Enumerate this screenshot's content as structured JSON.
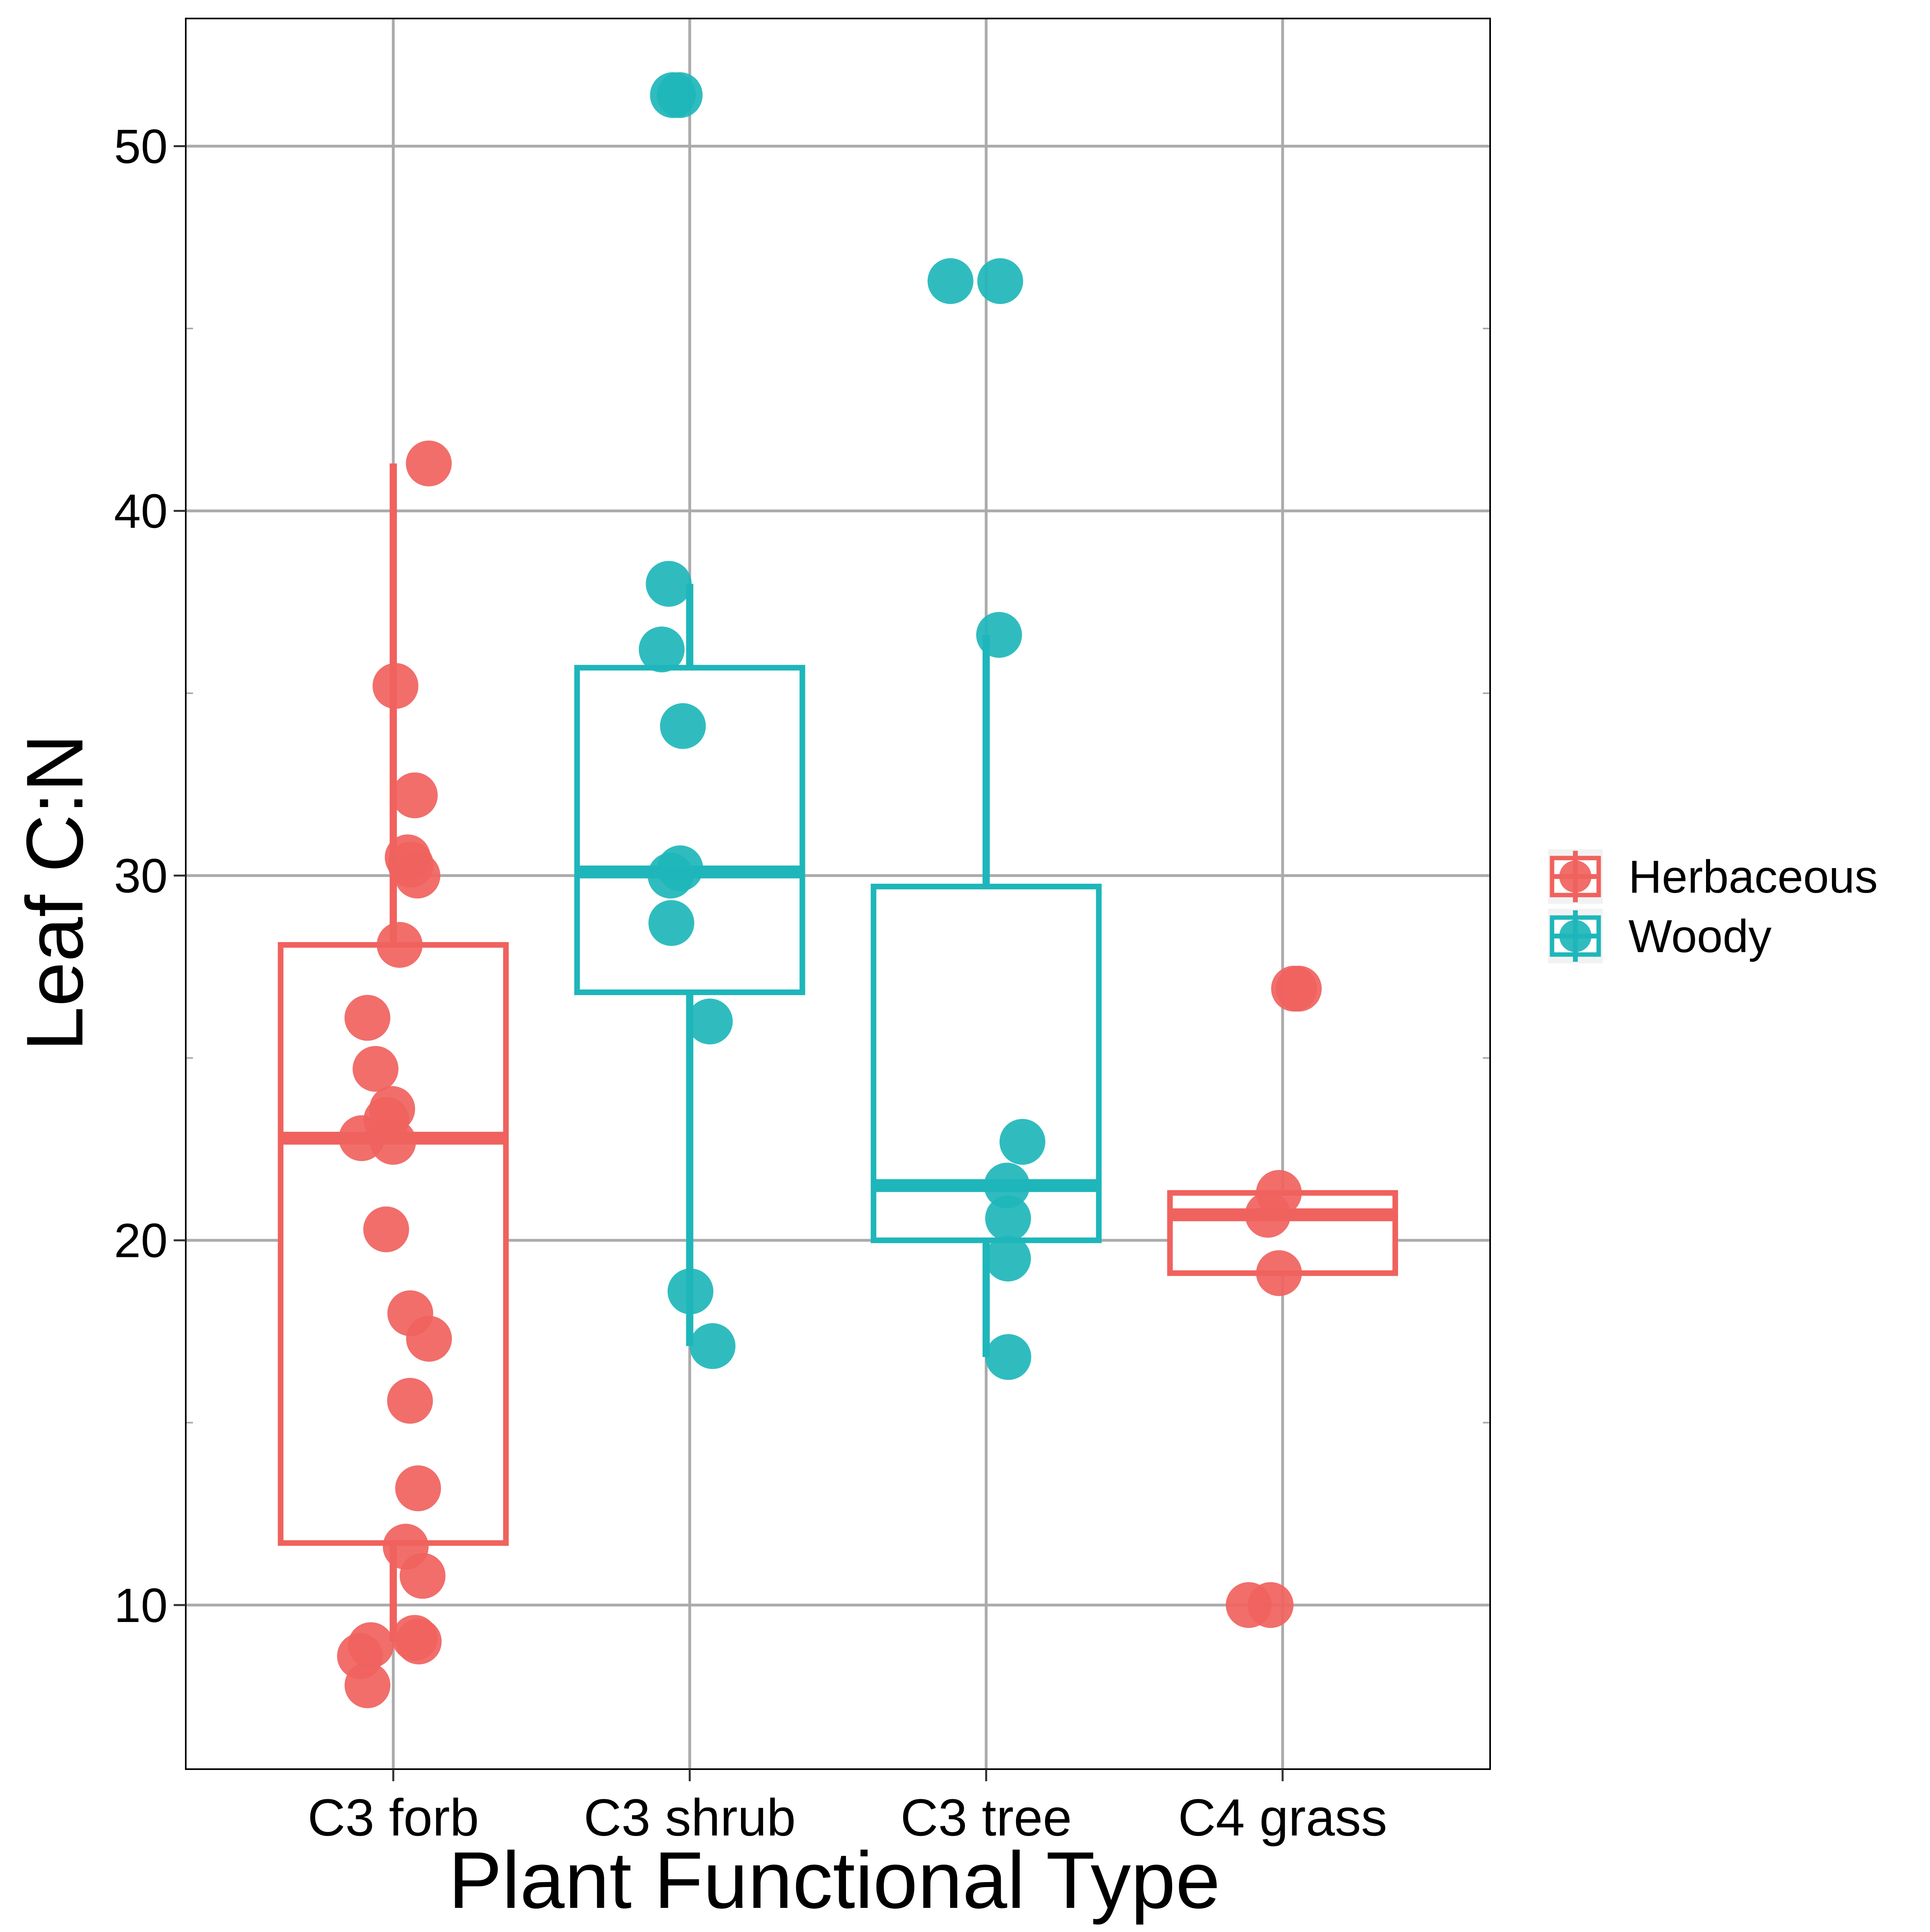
{
  "chart_data": {
    "type": "box",
    "title": "",
    "xlabel": "Plant Functional Type",
    "ylabel": "Leaf C:N",
    "ylim": [
      5.5,
      53.5
    ],
    "yticks": [
      10,
      20,
      30,
      40,
      50
    ],
    "y_minor_gridlines": [
      15,
      25,
      35,
      45
    ],
    "grid": true,
    "legend_position": "right",
    "categories": [
      "C3 forb",
      "C3 shrub",
      "C3 tree",
      "C4 grass"
    ],
    "series": [
      {
        "name": "Herbaceous",
        "color": "#F0625E"
      },
      {
        "name": "Woody",
        "color": "#1EB6BA"
      }
    ],
    "boxes": [
      {
        "category": "C3 forb",
        "group": "Herbaceous",
        "whisker_low": 9.0,
        "q1": 11.7,
        "median": 22.8,
        "q3": 28.1,
        "whisker_high": 41.3
      },
      {
        "category": "C3 shrub",
        "group": "Woody",
        "whisker_low": 17.1,
        "q1": 26.8,
        "median": 30.1,
        "q3": 35.7,
        "whisker_high": 38.0
      },
      {
        "category": "C3 tree",
        "group": "Woody",
        "whisker_low": 16.8,
        "q1": 20.0,
        "median": 21.5,
        "q3": 29.7,
        "whisker_high": 36.6
      },
      {
        "category": "C4 grass",
        "group": "Herbaceous",
        "whisker_low": 19.1,
        "q1": 19.1,
        "median": 20.7,
        "q3": 21.3,
        "whisker_high": 21.3
      }
    ],
    "points": [
      {
        "category": "C3 forb",
        "values": [
          41.3,
          35.2,
          32.2,
          30.5,
          30.3,
          30.0,
          28.1,
          26.1,
          24.7,
          23.6,
          23.3,
          22.8,
          22.7,
          20.3,
          18.0,
          17.3,
          15.6,
          13.2,
          11.6,
          10.8,
          9.1,
          9.0,
          8.9,
          8.6,
          7.8
        ]
      },
      {
        "category": "C3 shrub",
        "values": [
          51.4,
          51.4,
          38.0,
          36.2,
          34.1,
          30.2,
          30.0,
          28.7,
          26.0,
          18.6,
          17.1
        ]
      },
      {
        "category": "C3 tree",
        "values": [
          46.3,
          46.3,
          36.6,
          22.7,
          21.5,
          20.6,
          19.5,
          16.8
        ]
      },
      {
        "category": "C4 grass",
        "values": [
          26.9,
          26.9,
          21.3,
          20.7,
          19.1,
          10.0,
          10.0
        ]
      }
    ]
  }
}
